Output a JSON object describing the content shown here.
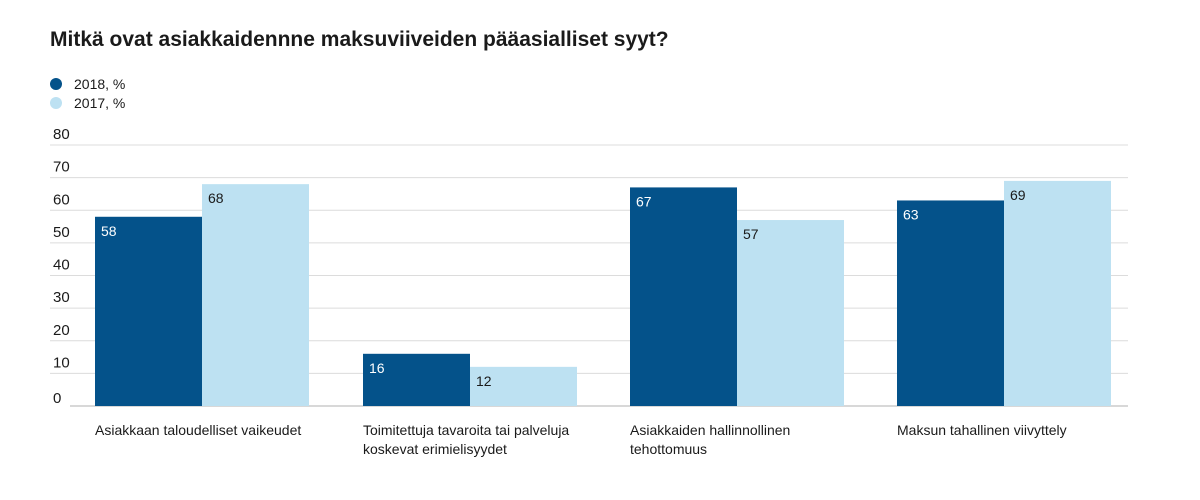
{
  "title": "Mitkä ovat asiakkaidennne maksuviiveiden pääasialliset syyt?",
  "colors": {
    "series2018": "#04528a",
    "series2017": "#bde1f2",
    "grid": "#dcdcdc",
    "axis": "#b0b0b0"
  },
  "chart_data": {
    "type": "bar",
    "title": "Mitkä ovat asiakkaidennne maksuviiveiden pääasialliset syyt?",
    "xlabel": "",
    "ylabel": "",
    "ylim": [
      0,
      80
    ],
    "yticks": [
      0,
      10,
      20,
      30,
      40,
      50,
      60,
      70,
      80
    ],
    "grid": true,
    "legend_position": "top-left",
    "categories": [
      "Asiakkaan taloudelliset vaikeudet",
      "Toimitettuja tavaroita tai palveluja koskevat erimielisyydet",
      "Asiakkaiden hallinnollinen tehottomuus",
      "Maksun tahallinen viivyttely"
    ],
    "category_lines": [
      [
        "Asiakkaan taloudelliset vaikeudet"
      ],
      [
        "Toimitettuja tavaroita tai palveluja",
        "koskevat erimielisyydet"
      ],
      [
        "Asiakkaiden hallinnollinen",
        "tehottomuus"
      ],
      [
        "Maksun tahallinen viivyttely"
      ]
    ],
    "series": [
      {
        "name": "2018, %",
        "values": [
          58,
          16,
          67,
          63
        ]
      },
      {
        "name": "2017, %",
        "values": [
          68,
          12,
          57,
          69
        ]
      }
    ]
  }
}
